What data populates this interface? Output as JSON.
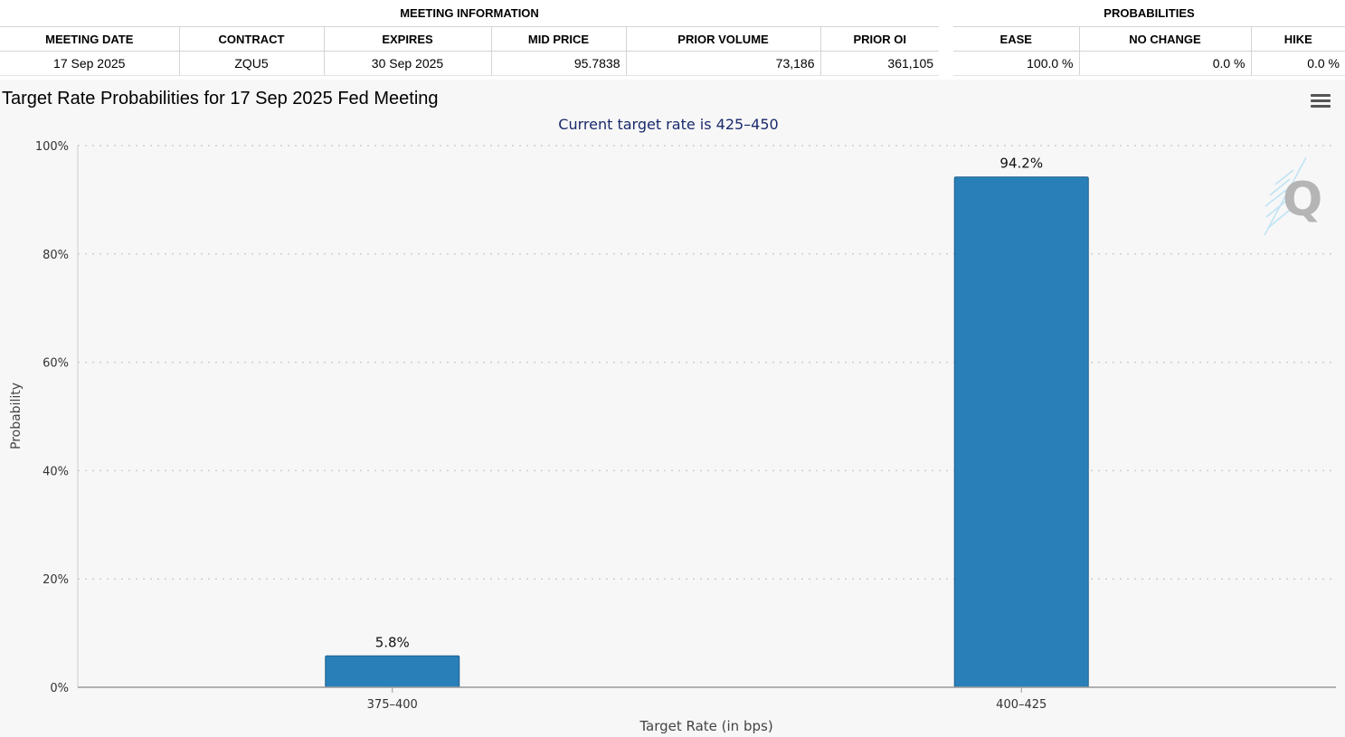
{
  "meeting_information": {
    "title": "MEETING INFORMATION",
    "headers": [
      "MEETING DATE",
      "CONTRACT",
      "EXPIRES",
      "MID PRICE",
      "PRIOR VOLUME",
      "PRIOR OI"
    ],
    "row": [
      "17 Sep 2025",
      "ZQU5",
      "30 Sep 2025",
      "95.7838",
      "73,186",
      "361,105"
    ]
  },
  "probabilities": {
    "title": "PROBABILITIES",
    "headers": [
      "EASE",
      "NO CHANGE",
      "HIKE"
    ],
    "row": [
      "100.0 %",
      "0.0 %",
      "0.0 %"
    ]
  },
  "chart_data": {
    "type": "bar",
    "title": "Target Rate Probabilities for 17 Sep 2025 Fed Meeting",
    "subtitle": "Current target rate is 425–450",
    "xlabel": "Target Rate (in bps)",
    "ylabel": "Probability",
    "categories": [
      "375–400",
      "400–425"
    ],
    "values": [
      5.8,
      94.2
    ],
    "data_labels": [
      "5.8%",
      "94.2%"
    ],
    "ylim": [
      0,
      100
    ],
    "yticks": [
      0,
      20,
      40,
      60,
      80,
      100
    ],
    "ytick_labels": [
      "0%",
      "20%",
      "40%",
      "60%",
      "80%",
      "100%"
    ],
    "grid": true,
    "bar_color": "#2980b9",
    "title_color": "#000000",
    "subtitle_color": "#1a2a6c"
  },
  "icons": {
    "menu": "hamburger-menu-icon",
    "watermark": "q-logo"
  }
}
